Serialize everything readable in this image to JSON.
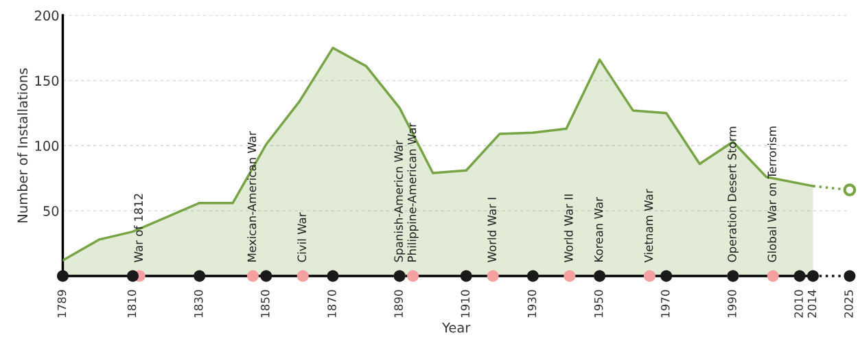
{
  "chart_data": {
    "type": "area",
    "xlabel": "Year",
    "ylabel": "Number of Installations",
    "x": [
      1789,
      1800,
      1810,
      1830,
      1840,
      1850,
      1860,
      1870,
      1880,
      1890,
      1900,
      1910,
      1920,
      1930,
      1940,
      1950,
      1960,
      1970,
      1980,
      1990,
      2000,
      2014
    ],
    "series": [
      {
        "color": "#77a444",
        "values": [
          12,
          28,
          34,
          56,
          56,
          101,
          134,
          175,
          161,
          129,
          79,
          81,
          109,
          110,
          113,
          166,
          127,
          125,
          86,
          103,
          76,
          69
        ]
      },
      {
        "type": "line",
        "color": "#77a444",
        "line_style": "dotted",
        "x": [
          2014,
          2025
        ],
        "values": [
          69,
          66
        ]
      },
      {
        "type": "scatter",
        "color": "#77a444",
        "x": [
          2025
        ],
        "values": [
          66
        ]
      },
      {
        "type": "scatter",
        "color": "#f4a0a0",
        "x": [
          1812,
          1846,
          1861,
          1890,
          1894,
          1918,
          1941,
          1950,
          1965,
          1990,
          2002
        ],
        "values": [
          0,
          0,
          0,
          0,
          0,
          0,
          0,
          0,
          0,
          0,
          0
        ]
      },
      {
        "type": "scatter",
        "color": "#1a1a1a",
        "x": [
          1789,
          1810,
          1830,
          1850,
          1870,
          1890,
          1910,
          1930,
          1950,
          1970,
          1990,
          2010,
          2014,
          2025
        ],
        "values": [
          0,
          0,
          0,
          0,
          0,
          0,
          0,
          0,
          0,
          0,
          0,
          0,
          0,
          0
        ]
      }
    ],
    "annotations": [
      {
        "text": "War of 1812",
        "x": 1812,
        "y": 0
      },
      {
        "text": "Mexican-American War",
        "x": 1846,
        "y": 0
      },
      {
        "text": "Civil War",
        "x": 1861,
        "y": 0
      },
      {
        "text": "Spanish-Americn War",
        "x": 1890,
        "y": 0
      },
      {
        "text": "Philippine-American War",
        "x": 1894,
        "y": 0
      },
      {
        "text": "World War I",
        "x": 1918,
        "y": 0
      },
      {
        "text": "World War II",
        "x": 1941,
        "y": 0
      },
      {
        "text": "Korean War",
        "x": 1950,
        "y": 0
      },
      {
        "text": "Vietnam War",
        "x": 1965,
        "y": 0
      },
      {
        "text": "Operation Desert Storm",
        "x": 1990,
        "y": 0
      },
      {
        "text": "Global War on Terrorism",
        "x": 2002,
        "y": 0
      }
    ],
    "xlim": [
      1789,
      2025
    ],
    "xticks": [
      1789,
      1810,
      1830,
      1850,
      1870,
      1890,
      1910,
      1930,
      1950,
      1970,
      1990,
      2010,
      2014,
      2025
    ],
    "ylim": [
      0,
      200
    ],
    "yticks": [
      50,
      100,
      150,
      200
    ],
    "grid": "y",
    "legend": false
  }
}
